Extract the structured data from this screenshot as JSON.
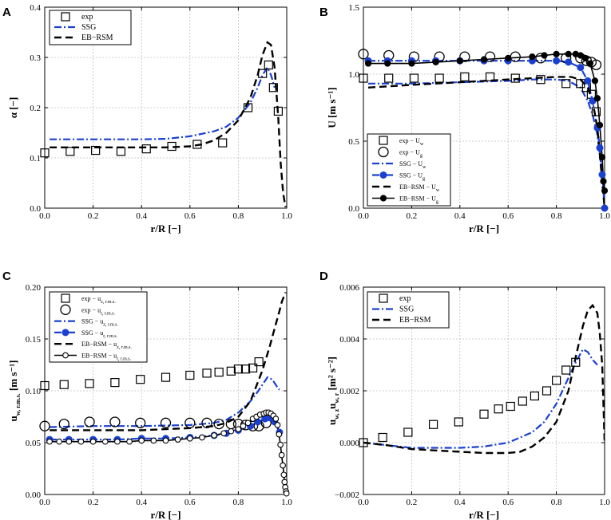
{
  "colors": {
    "ssg": "#1a40d0",
    "ebrsm": "#000000",
    "exp": "#000000",
    "grid": "#c0c0c0"
  },
  "chart_data": [
    {
      "panel": "A",
      "type": "line",
      "xlabel": "r/R [−]",
      "ylabel": "α [−]",
      "xlim": [
        0,
        1
      ],
      "ylim": [
        0,
        0.4
      ],
      "xticks": [
        0,
        0.2,
        0.4,
        0.6,
        0.8,
        1.0
      ],
      "yticks": [
        0,
        0.1,
        0.2,
        0.3,
        0.4
      ],
      "xtick_labels": [
        "0.0",
        "0.2",
        "0.4",
        "0.6",
        "0.8",
        "1.0"
      ],
      "ytick_labels": [
        "0.0",
        "0.1",
        "0.2",
        "0.3",
        "0.4"
      ],
      "legend": {
        "position": "top-left",
        "entries": [
          {
            "label": "exp",
            "style": "square"
          },
          {
            "label": "SSG",
            "style": "dashdot-blue"
          },
          {
            "label": "EB−RSM",
            "style": "dash-black"
          }
        ]
      },
      "series": [
        {
          "name": "exp",
          "style": "square",
          "x": [
            0.0,
            0.105,
            0.21,
            0.315,
            0.42,
            0.525,
            0.63,
            0.735,
            0.84,
            0.9,
            0.925,
            0.945,
            0.965
          ],
          "y": [
            0.11,
            0.113,
            0.115,
            0.113,
            0.118,
            0.123,
            0.127,
            0.13,
            0.2,
            0.268,
            0.285,
            0.24,
            0.193
          ]
        },
        {
          "name": "SSG",
          "style": "dashdot-blue",
          "x": [
            0.02,
            0.2,
            0.4,
            0.5,
            0.6,
            0.7,
            0.75,
            0.8,
            0.85,
            0.88,
            0.9,
            0.92,
            0.935,
            0.95
          ],
          "y": [
            0.137,
            0.137,
            0.137,
            0.138,
            0.143,
            0.153,
            0.162,
            0.18,
            0.21,
            0.24,
            0.265,
            0.28,
            0.265,
            0.24
          ]
        },
        {
          "name": "EB−RSM",
          "style": "dash-black",
          "x": [
            0.02,
            0.2,
            0.4,
            0.5,
            0.6,
            0.65,
            0.7,
            0.75,
            0.8,
            0.85,
            0.88,
            0.9,
            0.92,
            0.935,
            0.95,
            0.965,
            0.975,
            0.985,
            0.995
          ],
          "y": [
            0.121,
            0.121,
            0.121,
            0.121,
            0.123,
            0.127,
            0.135,
            0.15,
            0.175,
            0.22,
            0.265,
            0.305,
            0.33,
            0.325,
            0.28,
            0.18,
            0.09,
            0.03,
            0.002
          ]
        }
      ]
    },
    {
      "panel": "B",
      "type": "line",
      "xlabel": "r/R [−]",
      "ylabel": "U [m s⁻¹]",
      "xlim": [
        0,
        1
      ],
      "ylim": [
        0,
        1.5
      ],
      "xticks": [
        0,
        0.2,
        0.4,
        0.6,
        0.8,
        1.0
      ],
      "yticks": [
        0,
        0.5,
        1.0,
        1.5
      ],
      "xtick_labels": [
        "0.0",
        "0.2",
        "0.4",
        "0.6",
        "0.8",
        "1.0"
      ],
      "ytick_labels": [
        "0.0",
        "0.5",
        "1.0",
        "1.5"
      ],
      "legend": {
        "position": "bottom-left",
        "entries": [
          {
            "label": "exp − U",
            "sub": "w",
            "style": "square"
          },
          {
            "label": "exp − U",
            "sub": "g",
            "style": "circle"
          },
          {
            "label": "SSG − U",
            "sub": "w",
            "style": "dashdot-blue"
          },
          {
            "label": "SSG − U",
            "sub": "g",
            "style": "dashdot-blue-dot"
          },
          {
            "label": "EB−RSM − U",
            "sub": "w",
            "style": "dash-black"
          },
          {
            "label": "EB−RSM − U",
            "sub": "g",
            "style": "solid-black-dot"
          }
        ]
      },
      "series": [
        {
          "name": "exp − Uw",
          "style": "square",
          "x": [
            0.0,
            0.105,
            0.21,
            0.315,
            0.42,
            0.525,
            0.63,
            0.735,
            0.84,
            0.9,
            0.925,
            0.945,
            0.965
          ],
          "y": [
            0.97,
            0.97,
            0.97,
            0.97,
            0.98,
            0.98,
            0.97,
            0.96,
            0.93,
            0.93,
            0.9,
            0.85,
            0.72
          ]
        },
        {
          "name": "exp − Ug",
          "style": "circle",
          "x": [
            0.0,
            0.105,
            0.21,
            0.315,
            0.42,
            0.525,
            0.63,
            0.735,
            0.84,
            0.9,
            0.925,
            0.945,
            0.965
          ],
          "y": [
            1.15,
            1.14,
            1.13,
            1.13,
            1.13,
            1.13,
            1.13,
            1.12,
            1.12,
            1.12,
            1.1,
            1.09,
            1.07
          ]
        },
        {
          "name": "SSG − Uw",
          "style": "dashdot-blue",
          "x": [
            0.02,
            0.2,
            0.4,
            0.6,
            0.7,
            0.8,
            0.85,
            0.9,
            0.93,
            0.95,
            0.97,
            0.98,
            0.99,
            0.995,
            1.0
          ],
          "y": [
            0.93,
            0.93,
            0.94,
            0.95,
            0.96,
            0.96,
            0.95,
            0.9,
            0.8,
            0.7,
            0.55,
            0.4,
            0.25,
            0.15,
            0.0
          ]
        },
        {
          "name": "SSG − Ug",
          "style": "dashdot-blue-dot",
          "x": [
            0.02,
            0.1,
            0.2,
            0.3,
            0.4,
            0.5,
            0.6,
            0.7,
            0.8,
            0.85,
            0.9,
            0.93,
            0.95,
            0.97,
            0.98,
            0.99,
            1.0
          ],
          "y": [
            1.1,
            1.1,
            1.1,
            1.1,
            1.1,
            1.1,
            1.1,
            1.1,
            1.1,
            1.09,
            1.05,
            0.95,
            0.8,
            0.6,
            0.45,
            0.25,
            0.0
          ]
        },
        {
          "name": "EB−RSM − Uw",
          "style": "dash-black",
          "x": [
            0.02,
            0.2,
            0.4,
            0.6,
            0.7,
            0.8,
            0.86,
            0.9,
            0.93,
            0.95,
            0.97,
            0.98,
            0.99,
            0.995,
            1.0
          ],
          "y": [
            0.9,
            0.92,
            0.94,
            0.96,
            0.97,
            0.98,
            0.98,
            0.96,
            0.9,
            0.8,
            0.6,
            0.4,
            0.2,
            0.1,
            0.0
          ]
        },
        {
          "name": "EB−RSM − Ug",
          "style": "solid-black-dot",
          "x": [
            0.02,
            0.1,
            0.2,
            0.3,
            0.4,
            0.5,
            0.6,
            0.7,
            0.75,
            0.8,
            0.85,
            0.88,
            0.9,
            0.92,
            0.94,
            0.96,
            0.97,
            0.98,
            0.99,
            0.995,
            1.0
          ],
          "y": [
            1.08,
            1.08,
            1.08,
            1.09,
            1.1,
            1.11,
            1.12,
            1.13,
            1.14,
            1.15,
            1.15,
            1.15,
            1.14,
            1.12,
            1.08,
            0.95,
            0.82,
            0.62,
            0.38,
            0.2,
            0.13
          ]
        }
      ]
    },
    {
      "panel": "C",
      "type": "line",
      "xlabel": "r/R [−]",
      "ylabel": "u",
      "ylabel_sub": "w, r.m.s.",
      "ylabel_unit": "[m s⁻¹]",
      "xlim": [
        0,
        1
      ],
      "ylim": [
        0,
        0.2
      ],
      "xticks": [
        0,
        0.2,
        0.4,
        0.6,
        0.8,
        1.0
      ],
      "yticks": [
        0,
        0.05,
        0.1,
        0.15,
        0.2
      ],
      "xtick_labels": [
        "0.0",
        "0.2",
        "0.4",
        "0.6",
        "0.8",
        "1.0"
      ],
      "ytick_labels": [
        "0.00",
        "0.05",
        "0.10",
        "0.15",
        "0.20"
      ],
      "legend": {
        "position": "top-left",
        "entries": [
          {
            "label": "exp − u",
            "sub": "z, r.m.s.",
            "style": "square"
          },
          {
            "label": "exp − u",
            "sub": "r, r.m.s.",
            "style": "circle"
          },
          {
            "label": "SSG − u",
            "sub": "z, r.m.s.",
            "style": "dashdot-blue"
          },
          {
            "label": "SSG − u",
            "sub": "r, r.m.s.",
            "style": "dashdot-blue-dot"
          },
          {
            "label": "EB−RSM − u",
            "sub": "z, r.m.s.",
            "style": "dash-black"
          },
          {
            "label": "EB−RSM − u",
            "sub": "r, r.m.s.",
            "style": "solid-black-circle"
          }
        ]
      },
      "series": [
        {
          "name": "exp − uz",
          "style": "square",
          "x": [
            0.0,
            0.08,
            0.185,
            0.29,
            0.395,
            0.5,
            0.6,
            0.67,
            0.72,
            0.77,
            0.8,
            0.83,
            0.86,
            0.885
          ],
          "y": [
            0.105,
            0.106,
            0.107,
            0.108,
            0.111,
            0.113,
            0.115,
            0.117,
            0.118,
            0.119,
            0.121,
            0.121,
            0.122,
            0.128
          ]
        },
        {
          "name": "exp − ur",
          "style": "circle",
          "x": [
            0.0,
            0.08,
            0.185,
            0.29,
            0.395,
            0.5,
            0.6,
            0.67,
            0.72,
            0.77,
            0.8,
            0.83,
            0.86,
            0.885,
            0.915
          ],
          "y": [
            0.066,
            0.068,
            0.07,
            0.07,
            0.069,
            0.069,
            0.069,
            0.069,
            0.068,
            0.068,
            0.068,
            0.067,
            0.066,
            0.066,
            0.069
          ]
        },
        {
          "name": "SSG − uz",
          "style": "dashdot-blue",
          "x": [
            0.02,
            0.2,
            0.4,
            0.6,
            0.7,
            0.75,
            0.8,
            0.85,
            0.88,
            0.9,
            0.92,
            0.94,
            0.96,
            0.97
          ],
          "y": [
            0.065,
            0.066,
            0.066,
            0.067,
            0.069,
            0.072,
            0.079,
            0.09,
            0.099,
            0.106,
            0.113,
            0.111,
            0.104,
            0.101
          ]
        },
        {
          "name": "SSG − ur",
          "style": "dashdot-blue-dot",
          "x": [
            0.02,
            0.1,
            0.2,
            0.3,
            0.4,
            0.5,
            0.6,
            0.7,
            0.75,
            0.8,
            0.85,
            0.88,
            0.91,
            0.93,
            0.95,
            0.97
          ],
          "y": [
            0.053,
            0.053,
            0.053,
            0.053,
            0.054,
            0.054,
            0.055,
            0.057,
            0.059,
            0.062,
            0.066,
            0.07,
            0.073,
            0.074,
            0.07,
            0.06
          ]
        },
        {
          "name": "EB−RSM − uz",
          "style": "dash-black",
          "x": [
            0.02,
            0.2,
            0.4,
            0.6,
            0.7,
            0.75,
            0.8,
            0.85,
            0.9,
            0.93,
            0.95,
            0.97,
            0.98,
            0.99,
            0.995
          ],
          "y": [
            0.062,
            0.062,
            0.062,
            0.064,
            0.066,
            0.069,
            0.075,
            0.09,
            0.12,
            0.143,
            0.16,
            0.177,
            0.186,
            0.192,
            0.195
          ]
        },
        {
          "name": "EB−RSM − ur",
          "style": "solid-black-circle",
          "x": [
            0.02,
            0.06,
            0.1,
            0.15,
            0.2,
            0.25,
            0.3,
            0.35,
            0.4,
            0.45,
            0.5,
            0.55,
            0.6,
            0.65,
            0.7,
            0.74,
            0.77,
            0.8,
            0.82,
            0.84,
            0.86,
            0.875,
            0.89,
            0.905,
            0.915,
            0.925,
            0.935,
            0.945,
            0.955,
            0.962,
            0.968,
            0.974,
            0.979,
            0.984,
            0.988,
            0.991,
            0.994,
            0.997,
            0.999
          ],
          "y": [
            0.051,
            0.051,
            0.051,
            0.051,
            0.051,
            0.051,
            0.051,
            0.051,
            0.052,
            0.052,
            0.052,
            0.053,
            0.054,
            0.055,
            0.057,
            0.059,
            0.061,
            0.063,
            0.066,
            0.069,
            0.073,
            0.075,
            0.077,
            0.078,
            0.079,
            0.079,
            0.078,
            0.076,
            0.073,
            0.067,
            0.058,
            0.048,
            0.038,
            0.028,
            0.019,
            0.012,
            0.007,
            0.003,
            0.001
          ]
        }
      ]
    },
    {
      "panel": "D",
      "type": "line",
      "xlabel": "r/R [−]",
      "ylabel": "u",
      "ylabel_sub": "w, z",
      "ylabel_mid": "u",
      "ylabel_sub2": "w, r",
      "ylabel_unit": "[m² s⁻²]",
      "xlim": [
        0,
        1
      ],
      "ylim": [
        -0.002,
        0.006
      ],
      "xticks": [
        0,
        0.2,
        0.4,
        0.6,
        0.8,
        1.0
      ],
      "yticks": [
        -0.002,
        0,
        0.002,
        0.004,
        0.006
      ],
      "xtick_labels": [
        "0.0",
        "0.2",
        "0.4",
        "0.6",
        "0.8",
        "1.0"
      ],
      "ytick_labels": [
        "−0.002",
        "0.000",
        "0.002",
        "0.004",
        "0.006"
      ],
      "legend": {
        "position": "top-left",
        "entries": [
          {
            "label": "exp",
            "style": "square"
          },
          {
            "label": "SSG",
            "style": "dashdot-blue"
          },
          {
            "label": "EB−RSM",
            "style": "dash-black"
          }
        ]
      },
      "series": [
        {
          "name": "exp",
          "style": "square",
          "x": [
            0.0,
            0.08,
            0.185,
            0.29,
            0.395,
            0.5,
            0.56,
            0.61,
            0.66,
            0.71,
            0.76,
            0.8,
            0.84,
            0.88
          ],
          "y": [
            0.0,
            0.0002,
            0.0004,
            0.0007,
            0.0008,
            0.0011,
            0.0013,
            0.0014,
            0.0016,
            0.0018,
            0.002,
            0.0024,
            0.0028,
            0.0031
          ]
        },
        {
          "name": "SSG",
          "style": "dashdot-blue",
          "x": [
            0.0,
            0.1,
            0.2,
            0.3,
            0.4,
            0.5,
            0.6,
            0.7,
            0.75,
            0.8,
            0.85,
            0.88,
            0.91,
            0.93,
            0.95,
            0.97
          ],
          "y": [
            0.0,
            -0.0001,
            -0.0002,
            -0.0002,
            -0.0002,
            -0.00015,
            0.0,
            0.0004,
            0.0008,
            0.0015,
            0.0025,
            0.0031,
            0.0036,
            0.0035,
            0.0032,
            0.003
          ]
        },
        {
          "name": "EB−RSM",
          "style": "dash-black",
          "x": [
            0.0,
            0.1,
            0.2,
            0.3,
            0.4,
            0.5,
            0.6,
            0.65,
            0.7,
            0.75,
            0.8,
            0.85,
            0.88,
            0.91,
            0.93,
            0.95,
            0.97,
            0.98,
            0.99,
            0.995,
            1.0
          ],
          "y": [
            0.0,
            -0.0001,
            -0.00025,
            -0.0003,
            -0.00035,
            -0.0004,
            -0.0004,
            -0.00035,
            -0.00015,
            0.0002,
            0.0008,
            0.002,
            0.0033,
            0.0045,
            0.0051,
            0.0053,
            0.005,
            0.0042,
            0.003,
            0.0015,
            0.0
          ]
        }
      ]
    }
  ]
}
